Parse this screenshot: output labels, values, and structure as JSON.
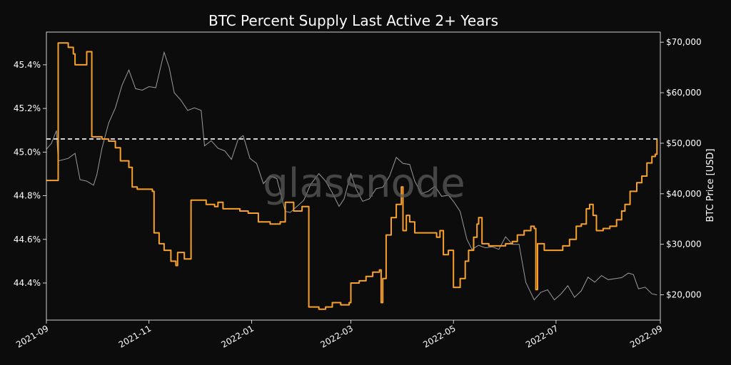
{
  "chart_data": {
    "type": "line",
    "title": "BTC Percent Supply Last Active 2+ Years",
    "watermark": "glassnode",
    "x_ticks": [
      "2021-09",
      "2021-11",
      "2022-01",
      "2022-03",
      "2022-05",
      "2022-07",
      "2022-09"
    ],
    "y_left": {
      "ticks": [
        "44.4%",
        "44.6%",
        "44.8%",
        "45.0%",
        "45.2%",
        "45.4%"
      ],
      "tick_values": [
        44.4,
        44.6,
        44.8,
        45.0,
        45.2,
        45.4
      ],
      "lim": [
        44.23,
        45.55
      ]
    },
    "y_right": {
      "label": "BTC Price [USD]",
      "ticks": [
        "$20,000",
        "$30,000",
        "$40,000",
        "$50,000",
        "$60,000",
        "$70,000"
      ],
      "tick_values": [
        20000,
        30000,
        40000,
        50000,
        60000,
        70000
      ],
      "lim": [
        15000,
        72000
      ]
    },
    "reference_line": {
      "axis": "left",
      "value": 45.06,
      "style": "dashed",
      "color": "#ffffff"
    },
    "colors": {
      "supply": "#f7a12c",
      "price": "#9a9a9a",
      "background": "#0c0c0c",
      "text": "#ffffff"
    },
    "series": [
      {
        "axis": "left",
        "points": [
          [
            "2021-09-01",
            44.87
          ],
          [
            "2021-09-07",
            44.87
          ],
          [
            "2021-09-08",
            45.5
          ],
          [
            "2021-09-14",
            45.48
          ],
          [
            "2021-09-17",
            45.45
          ],
          [
            "2021-09-18",
            45.4
          ],
          [
            "2021-09-24",
            45.4
          ],
          [
            "2021-09-25",
            45.46
          ],
          [
            "2021-09-27",
            45.46
          ],
          [
            "2021-09-28",
            45.07
          ],
          [
            "2021-10-03",
            45.07
          ],
          [
            "2021-10-04",
            45.06
          ],
          [
            "2021-10-08",
            45.05
          ],
          [
            "2021-10-12",
            45.02
          ],
          [
            "2021-10-15",
            44.96
          ],
          [
            "2021-10-20",
            44.93
          ],
          [
            "2021-10-22",
            44.84
          ],
          [
            "2021-10-25",
            44.83
          ],
          [
            "2021-11-01",
            44.83
          ],
          [
            "2021-11-03",
            44.82
          ],
          [
            "2021-11-04",
            44.63
          ],
          [
            "2021-11-07",
            44.58
          ],
          [
            "2021-11-10",
            44.55
          ],
          [
            "2021-11-14",
            44.5
          ],
          [
            "2021-11-17",
            44.48
          ],
          [
            "2021-11-18",
            44.54
          ],
          [
            "2021-11-22",
            44.51
          ],
          [
            "2021-11-25",
            44.51
          ],
          [
            "2021-11-26",
            44.78
          ],
          [
            "2021-12-05",
            44.76
          ],
          [
            "2021-12-10",
            44.75
          ],
          [
            "2021-12-12",
            44.77
          ],
          [
            "2021-12-15",
            44.74
          ],
          [
            "2021-12-20",
            44.74
          ],
          [
            "2021-12-25",
            44.73
          ],
          [
            "2021-12-30",
            44.72
          ],
          [
            "2022-01-03",
            44.72
          ],
          [
            "2022-01-05",
            44.68
          ],
          [
            "2022-01-10",
            44.68
          ],
          [
            "2022-01-12",
            44.67
          ],
          [
            "2022-01-18",
            44.68
          ],
          [
            "2022-01-20",
            44.68
          ],
          [
            "2022-01-21",
            44.77
          ],
          [
            "2022-01-26",
            44.73
          ],
          [
            "2022-01-31",
            44.75
          ],
          [
            "2022-02-03",
            44.75
          ],
          [
            "2022-02-04",
            44.29
          ],
          [
            "2022-02-10",
            44.28
          ],
          [
            "2022-02-14",
            44.29
          ],
          [
            "2022-02-18",
            44.31
          ],
          [
            "2022-02-23",
            44.3
          ],
          [
            "2022-02-28",
            44.31
          ],
          [
            "2022-03-01",
            44.4
          ],
          [
            "2022-03-06",
            44.41
          ],
          [
            "2022-03-10",
            44.43
          ],
          [
            "2022-03-14",
            44.45
          ],
          [
            "2022-03-18",
            44.46
          ],
          [
            "2022-03-19",
            44.31
          ],
          [
            "2022-03-20",
            44.42
          ],
          [
            "2022-03-22",
            44.62
          ],
          [
            "2022-03-25",
            44.7
          ],
          [
            "2022-03-28",
            44.76
          ],
          [
            "2022-03-31",
            44.84
          ],
          [
            "2022-04-01",
            44.64
          ],
          [
            "2022-04-03",
            44.71
          ],
          [
            "2022-04-05",
            44.68
          ],
          [
            "2022-04-08",
            44.63
          ],
          [
            "2022-04-12",
            44.63
          ],
          [
            "2022-04-18",
            44.63
          ],
          [
            "2022-04-21",
            44.61
          ],
          [
            "2022-04-23",
            44.64
          ],
          [
            "2022-04-25",
            44.53
          ],
          [
            "2022-04-28",
            44.55
          ],
          [
            "2022-05-01",
            44.38
          ],
          [
            "2022-05-05",
            44.42
          ],
          [
            "2022-05-08",
            44.5
          ],
          [
            "2022-05-10",
            44.55
          ],
          [
            "2022-05-13",
            44.61
          ],
          [
            "2022-05-15",
            44.67
          ],
          [
            "2022-05-16",
            44.7
          ],
          [
            "2022-05-18",
            44.58
          ],
          [
            "2022-05-22",
            44.57
          ],
          [
            "2022-05-28",
            44.57
          ],
          [
            "2022-06-01",
            44.58
          ],
          [
            "2022-06-05",
            44.59
          ],
          [
            "2022-06-08",
            44.62
          ],
          [
            "2022-06-12",
            44.64
          ],
          [
            "2022-06-16",
            44.66
          ],
          [
            "2022-06-18",
            44.65
          ],
          [
            "2022-06-19",
            44.37
          ],
          [
            "2022-06-20",
            44.58
          ],
          [
            "2022-06-24",
            44.55
          ],
          [
            "2022-06-28",
            44.55
          ],
          [
            "2022-07-01",
            44.55
          ],
          [
            "2022-07-05",
            44.57
          ],
          [
            "2022-07-09",
            44.6
          ],
          [
            "2022-07-13",
            44.66
          ],
          [
            "2022-07-16",
            44.67
          ],
          [
            "2022-07-19",
            44.74
          ],
          [
            "2022-07-21",
            44.76
          ],
          [
            "2022-07-23",
            44.71
          ],
          [
            "2022-07-25",
            44.64
          ],
          [
            "2022-07-29",
            44.65
          ],
          [
            "2022-08-02",
            44.66
          ],
          [
            "2022-08-06",
            44.69
          ],
          [
            "2022-08-09",
            44.73
          ],
          [
            "2022-08-11",
            44.76
          ],
          [
            "2022-08-14",
            44.82
          ],
          [
            "2022-08-18",
            44.86
          ],
          [
            "2022-08-21",
            44.89
          ],
          [
            "2022-08-24",
            44.95
          ],
          [
            "2022-08-27",
            44.98
          ],
          [
            "2022-08-29",
            44.99
          ],
          [
            "2022-08-30",
            45.06
          ]
        ]
      },
      {
        "axis": "right",
        "points": [
          [
            "2021-09-01",
            48800
          ],
          [
            "2021-09-04",
            50000
          ],
          [
            "2021-09-07",
            52500
          ],
          [
            "2021-09-08",
            46500
          ],
          [
            "2021-09-14",
            47000
          ],
          [
            "2021-09-18",
            48000
          ],
          [
            "2021-09-21",
            42800
          ],
          [
            "2021-09-25",
            42500
          ],
          [
            "2021-09-29",
            41700
          ],
          [
            "2021-10-01",
            43800
          ],
          [
            "2021-10-04",
            49000
          ],
          [
            "2021-10-08",
            54000
          ],
          [
            "2021-10-12",
            57000
          ],
          [
            "2021-10-16",
            61500
          ],
          [
            "2021-10-20",
            64500
          ],
          [
            "2021-10-24",
            60800
          ],
          [
            "2021-10-28",
            60500
          ],
          [
            "2021-11-01",
            61200
          ],
          [
            "2021-11-05",
            61000
          ],
          [
            "2021-11-10",
            68000
          ],
          [
            "2021-11-13",
            65000
          ],
          [
            "2021-11-16",
            60000
          ],
          [
            "2021-11-20",
            58500
          ],
          [
            "2021-11-24",
            56500
          ],
          [
            "2021-11-28",
            57000
          ],
          [
            "2021-12-02",
            56500
          ],
          [
            "2021-12-04",
            49500
          ],
          [
            "2021-12-08",
            50500
          ],
          [
            "2021-12-12",
            49000
          ],
          [
            "2021-12-16",
            48500
          ],
          [
            "2021-12-20",
            46800
          ],
          [
            "2021-12-24",
            50800
          ],
          [
            "2021-12-27",
            51500
          ],
          [
            "2021-12-31",
            47000
          ],
          [
            "2022-01-04",
            46000
          ],
          [
            "2022-01-08",
            42000
          ],
          [
            "2022-01-12",
            43500
          ],
          [
            "2022-01-16",
            43000
          ],
          [
            "2022-01-21",
            36500
          ],
          [
            "2022-01-24",
            36300
          ],
          [
            "2022-01-28",
            37500
          ],
          [
            "2022-02-01",
            38700
          ],
          [
            "2022-02-05",
            41800
          ],
          [
            "2022-02-10",
            44000
          ],
          [
            "2022-02-14",
            42500
          ],
          [
            "2022-02-18",
            40200
          ],
          [
            "2022-02-22",
            37500
          ],
          [
            "2022-02-25",
            39000
          ],
          [
            "2022-03-01",
            44000
          ],
          [
            "2022-03-04",
            41000
          ],
          [
            "2022-03-08",
            38500
          ],
          [
            "2022-03-12",
            39000
          ],
          [
            "2022-03-16",
            41000
          ],
          [
            "2022-03-20",
            41300
          ],
          [
            "2022-03-24",
            43500
          ],
          [
            "2022-03-28",
            47200
          ],
          [
            "2022-04-01",
            46000
          ],
          [
            "2022-04-05",
            45800
          ],
          [
            "2022-04-08",
            42500
          ],
          [
            "2022-04-12",
            40000
          ],
          [
            "2022-04-16",
            40500
          ],
          [
            "2022-04-20",
            41500
          ],
          [
            "2022-04-24",
            39500
          ],
          [
            "2022-04-28",
            39700
          ],
          [
            "2022-05-01",
            38500
          ],
          [
            "2022-05-05",
            36500
          ],
          [
            "2022-05-09",
            31000
          ],
          [
            "2022-05-12",
            29000
          ],
          [
            "2022-05-16",
            29800
          ],
          [
            "2022-05-20",
            29300
          ],
          [
            "2022-05-24",
            29500
          ],
          [
            "2022-05-28",
            29000
          ],
          [
            "2022-06-01",
            31500
          ],
          [
            "2022-06-05",
            30000
          ],
          [
            "2022-06-09",
            30000
          ],
          [
            "2022-06-13",
            22500
          ],
          [
            "2022-06-18",
            19000
          ],
          [
            "2022-06-22",
            20500
          ],
          [
            "2022-06-26",
            21000
          ],
          [
            "2022-06-30",
            19000
          ],
          [
            "2022-07-04",
            20200
          ],
          [
            "2022-07-08",
            21800
          ],
          [
            "2022-07-12",
            19500
          ],
          [
            "2022-07-16",
            20800
          ],
          [
            "2022-07-20",
            23500
          ],
          [
            "2022-07-24",
            22500
          ],
          [
            "2022-07-28",
            23800
          ],
          [
            "2022-08-01",
            23000
          ],
          [
            "2022-08-05",
            23200
          ],
          [
            "2022-08-09",
            23400
          ],
          [
            "2022-08-13",
            24300
          ],
          [
            "2022-08-16",
            24000
          ],
          [
            "2022-08-19",
            21200
          ],
          [
            "2022-08-23",
            21500
          ],
          [
            "2022-08-27",
            20200
          ],
          [
            "2022-08-30",
            20000
          ]
        ]
      }
    ]
  }
}
